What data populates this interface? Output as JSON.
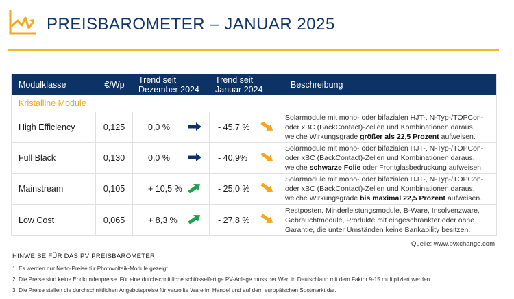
{
  "header": {
    "logo_icon": "rising-chart-icon",
    "title": "PREISBAROMETER – JANUAR 2025"
  },
  "colors": {
    "navy": "#0d3366",
    "gold": "#f5b820",
    "orange_arrow": "#f5a623",
    "green_arrow": "#1fa050"
  },
  "table": {
    "columns": {
      "modulklasse": "Modulklasse",
      "price": "€/Wp",
      "trend_dec_1": "Trend seit",
      "trend_dec_2": "Dezember 2024",
      "trend_jan_1": "Trend seit",
      "trend_jan_2": "Januar 2024",
      "description": "Beschreibung"
    },
    "section_label": "Kristalline Module",
    "rows": [
      {
        "name": "High Efficiency",
        "price": "0,125",
        "trend_dec": "0,0 %",
        "trend_dec_icon": "arrow-right-icon",
        "trend_jan": "- 45,7 %",
        "trend_jan_icon": "arrow-down-right-icon",
        "desc_pre": "Solarmodule mit mono- oder bifazialen HJT-, N-Typ-/TOPCon-oder xBC (BackContact)-Zellen und Kombinationen daraus, welche Wirkungsgrade ",
        "desc_bold": "größer als 22,5 Prozent",
        "desc_post": " aufweisen."
      },
      {
        "name": "Full Black",
        "price": "0,130",
        "trend_dec": "0,0 %",
        "trend_dec_icon": "arrow-right-icon",
        "trend_jan": "- 40,9%",
        "trend_jan_icon": "arrow-down-right-icon",
        "desc_pre": "Solarmodule mit mono- oder bifazialen HJT-, N-Typ-/TOPCon-oder xBC (BackContact)-Zellen und Kombinationen daraus, welche ",
        "desc_bold": "schwarze Folie",
        "desc_post": " oder Frontglasbedruckung aufweisen."
      },
      {
        "name": "Mainstream",
        "price": "0,105",
        "trend_dec": "+ 10,5 %",
        "trend_dec_icon": "arrow-up-right-icon",
        "trend_jan": "- 25,0 %",
        "trend_jan_icon": "arrow-down-right-icon",
        "desc_pre": "Solarmodule mit mono- oder bifazialen HJT-, N-Typ-/TOPCon-oder xBC (BackContact)-Zellen und Kombinationen daraus, welche Wirkungsgrade ",
        "desc_bold": "bis maximal 22,5 Prozent",
        "desc_post": " aufweisen."
      },
      {
        "name": "Low Cost",
        "price": "0,065",
        "trend_dec": "+  8,3 %",
        "trend_dec_icon": "arrow-up-right-icon",
        "trend_jan": "- 27,8 %",
        "trend_jan_icon": "arrow-down-right-icon",
        "desc_pre": "Restposten, Minderleistungsmodule, B-Ware, Insolvenzware, Gebrauchtmodule, Produkte mit eingeschränkter oder ohne Garantie, die unter Umständen keine Bankability besitzen.",
        "desc_bold": "",
        "desc_post": ""
      }
    ]
  },
  "source": "Quelle: www.pvxchange.com",
  "notes": {
    "title": "HINWEISE FÜR DAS PV PREISBAROMETER",
    "items": [
      "1.  Es werden nur Netto-Preise für Photovoltaik-Module gezeigt.",
      "2. Die Preise sind keine Endkundenpreise. Für eine durchschnittliche schlüsselfertige PV-Anlage muss der Wert in Deutschland mit dem Faktor 9-15 multipliziert werden.",
      "3. Die Preise stellen die durchschnittlichen Angebotspreise für verzollte Ware im Handel und auf dem europäischen Spotmarkt dar."
    ]
  }
}
